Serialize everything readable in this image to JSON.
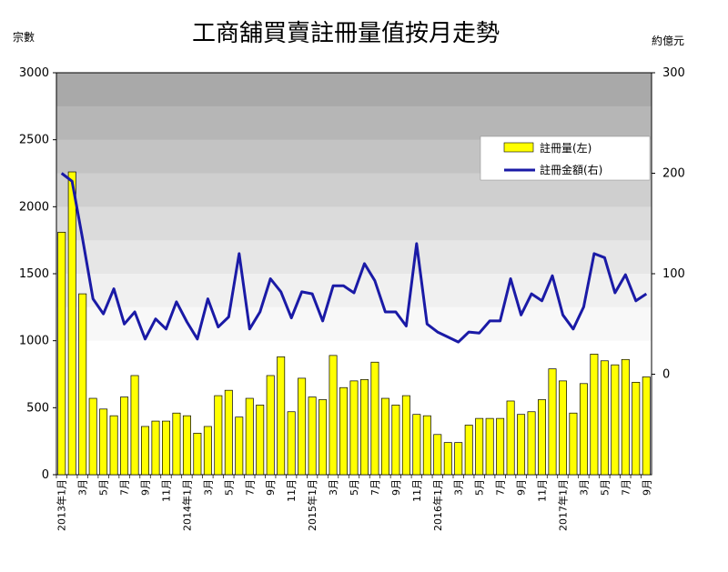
{
  "chart_data": {
    "type": "bar",
    "title": "工商舖買賣註冊量值按月走勢",
    "left_axis_label": "宗數",
    "right_axis_label": "約億元",
    "ylim": [
      0,
      3000
    ],
    "y2lim": [
      -100,
      300
    ],
    "left_ticks": [
      0,
      500,
      1000,
      1500,
      2000,
      2500,
      3000
    ],
    "right_ticks": [
      0,
      100,
      200,
      300
    ],
    "legend_position": "top-right",
    "months": [
      "2013-01",
      "2013-02",
      "2013-03",
      "2013-04",
      "2013-05",
      "2013-06",
      "2013-07",
      "2013-08",
      "2013-09",
      "2013-10",
      "2013-11",
      "2013-12",
      "2014-01",
      "2014-02",
      "2014-03",
      "2014-04",
      "2014-05",
      "2014-06",
      "2014-07",
      "2014-08",
      "2014-09",
      "2014-10",
      "2014-11",
      "2014-12",
      "2015-01",
      "2015-02",
      "2015-03",
      "2015-04",
      "2015-05",
      "2015-06",
      "2015-07",
      "2015-08",
      "2015-09",
      "2015-10",
      "2015-11",
      "2015-12",
      "2016-01",
      "2016-02",
      "2016-03",
      "2016-04",
      "2016-05",
      "2016-06",
      "2016-07",
      "2016-08",
      "2016-09",
      "2016-10",
      "2016-11",
      "2016-12",
      "2017-01",
      "2017-02",
      "2017-03",
      "2017-04",
      "2017-05",
      "2017-06",
      "2017-07",
      "2017-08",
      "2017-09"
    ],
    "x_tick_labels": [
      "2013年1月",
      "",
      "3月",
      "",
      "5月",
      "",
      "7月",
      "",
      "9月",
      "",
      "11月",
      "",
      "2014年1月",
      "",
      "3月",
      "",
      "5月",
      "",
      "7月",
      "",
      "9月",
      "",
      "11月",
      "",
      "2015年1月",
      "",
      "3月",
      "",
      "5月",
      "",
      "7月",
      "",
      "9月",
      "",
      "11月",
      "",
      "2016年1月",
      "",
      "3月",
      "",
      "5月",
      "",
      "7月",
      "",
      "9月",
      "",
      "11月",
      "",
      "2017年1月",
      "",
      "3月",
      "",
      "5月",
      "",
      "7月",
      "",
      "9月"
    ],
    "series": [
      {
        "name": "註冊量(左)",
        "axis": "left",
        "kind": "bar",
        "color": "#ffff00",
        "values": [
          1810,
          2260,
          1350,
          570,
          490,
          440,
          580,
          740,
          360,
          400,
          400,
          460,
          440,
          310,
          360,
          590,
          630,
          430,
          570,
          520,
          740,
          880,
          470,
          720,
          580,
          560,
          890,
          650,
          700,
          710,
          840,
          570,
          520,
          590,
          450,
          440,
          300,
          240,
          240,
          370,
          420,
          420,
          420,
          550,
          450,
          470,
          560,
          790,
          700,
          460,
          680,
          900,
          850,
          820,
          860,
          690,
          730
        ]
      },
      {
        "name": "註冊金額(右)",
        "axis": "right",
        "kind": "line",
        "color": "#1a1aa6",
        "values": [
          200,
          192,
          135,
          75,
          60,
          85,
          50,
          62,
          35,
          55,
          45,
          72,
          52,
          35,
          75,
          47,
          57,
          120,
          45,
          62,
          95,
          82,
          56,
          82,
          80,
          53,
          88,
          88,
          81,
          110,
          93,
          62,
          62,
          48,
          130,
          50,
          42,
          37,
          32,
          42,
          41,
          53,
          53,
          95,
          59,
          80,
          73,
          98,
          59,
          45,
          67,
          120,
          116,
          81,
          99,
          73,
          80
        ]
      }
    ]
  }
}
